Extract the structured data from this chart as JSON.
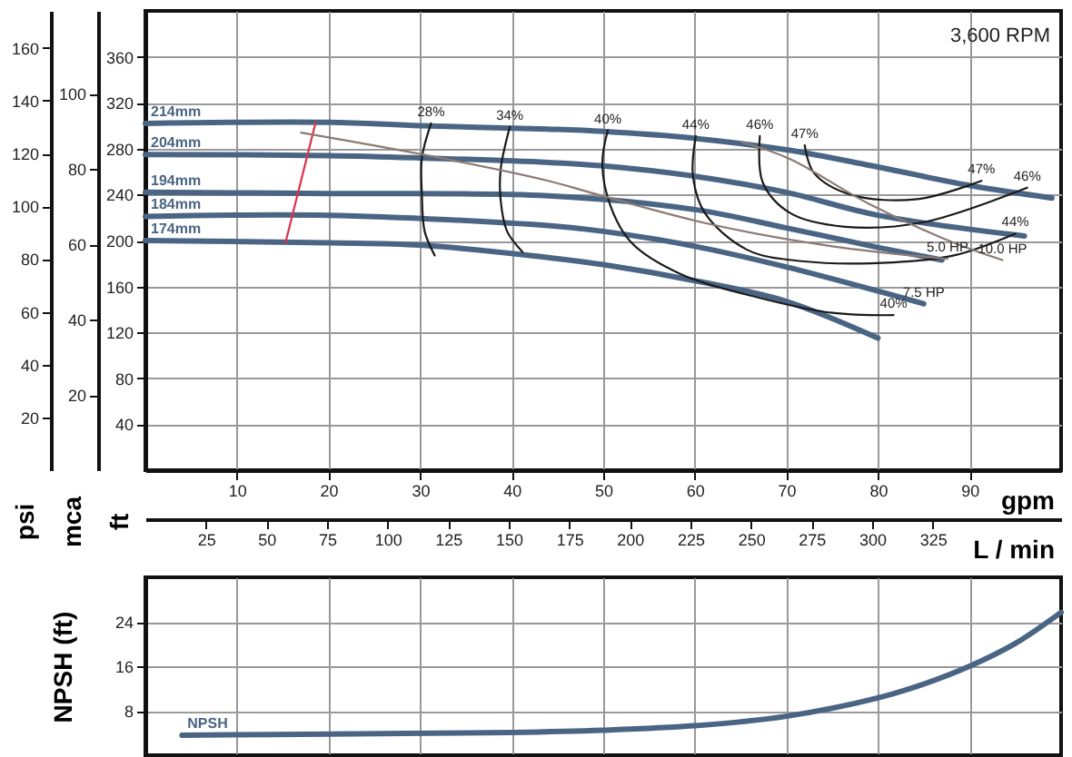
{
  "chart_data": [
    {
      "type": "line",
      "xlabel": "gpm",
      "ylabel": "ft",
      "y2label": "psi",
      "y3label": "mca",
      "x2label": "L / min",
      "xlim": [
        0,
        100
      ],
      "xticks": [
        10,
        20,
        30,
        40,
        50,
        60,
        70,
        80,
        90
      ],
      "ylim": [
        0,
        400
      ],
      "yticks": [
        40,
        80,
        120,
        160,
        200,
        240,
        280,
        320,
        360
      ],
      "y2lim": [
        0,
        174
      ],
      "y2ticks": [
        20,
        40,
        60,
        80,
        100,
        120,
        140,
        160
      ],
      "y3lim": [
        0,
        122
      ],
      "y3ticks": [
        20,
        40,
        60,
        80,
        100
      ],
      "x2lim": [
        0,
        378
      ],
      "x2ticks": [
        25,
        50,
        75,
        100,
        125,
        150,
        175,
        200,
        225,
        250,
        275,
        300,
        325
      ],
      "grid": true,
      "series": [
        {
          "name": "214mm",
          "color": "#4a6584",
          "x": [
            0,
            20,
            30,
            44,
            50,
            60,
            70,
            80,
            90,
            99
          ],
          "values": [
            302,
            303,
            300,
            297,
            295,
            289,
            279,
            264,
            248,
            237
          ]
        },
        {
          "name": "204mm",
          "color": "#4a6584",
          "x": [
            0,
            20,
            30,
            44,
            50,
            60,
            70,
            80,
            96
          ],
          "values": [
            275,
            274,
            272,
            268,
            265,
            256,
            242,
            222,
            204
          ]
        },
        {
          "name": "194mm",
          "color": "#4a6584",
          "x": [
            0,
            20,
            44,
            60,
            70,
            80,
            87
          ],
          "values": [
            242,
            241,
            239,
            227,
            211,
            194,
            183
          ]
        },
        {
          "name": "184mm",
          "color": "#4a6584",
          "x": [
            0,
            20,
            44,
            50,
            60,
            70,
            80,
            85
          ],
          "values": [
            221,
            222,
            213,
            208,
            195,
            177,
            156,
            145
          ]
        },
        {
          "name": "174mm",
          "color": "#4a6584",
          "x": [
            0,
            20,
            30,
            42,
            50,
            60,
            70,
            80
          ],
          "values": [
            200,
            198,
            196,
            187,
            179,
            165,
            147,
            115
          ]
        },
        {
          "color": "#e0304a",
          "x": [
            18.6,
            15.3
          ],
          "values": [
            303,
            198
          ]
        },
        {
          "color": "#1a1a1a",
          "x": [
            31.2,
            30.2,
            30.2,
            30.5,
            31.6
          ],
          "values": [
            302,
            272,
            240,
            208,
            187
          ]
        },
        {
          "color": "#1a1a1a",
          "x": [
            39.8,
            38.8,
            38.8,
            39.5,
            41.2
          ],
          "values": [
            299,
            262,
            235,
            208,
            190
          ]
        },
        {
          "color": "#1a1a1a",
          "x": [
            50.5,
            49.9,
            50.8,
            53.1,
            58.4,
            67.1,
            75,
            81.7
          ],
          "values": [
            296,
            267,
            230,
            198,
            171,
            150,
            137,
            135
          ]
        },
        {
          "color": "#1a1a1a",
          "x": [
            60.1,
            59.8,
            61.1,
            65.7,
            71.7,
            81.7,
            88.3,
            95
          ],
          "values": [
            291,
            256,
            224,
            192,
            182,
            181,
            187,
            206
          ]
        },
        {
          "color": "#1a1a1a",
          "x": [
            67.1,
            67.4,
            70.4,
            76.4,
            85,
            96.3
          ],
          "values": [
            291,
            251,
            224,
            212,
            216,
            246
          ]
        },
        {
          "color": "#1a1a1a",
          "x": [
            72,
            73,
            77,
            84.3,
            91.3
          ],
          "values": [
            283,
            259,
            240,
            236,
            252
          ]
        },
        {
          "color": "#8c7b74",
          "x": [
            17,
            30.9,
            44,
            48.5,
            61.8,
            75,
            87.6
          ],
          "values": [
            294,
            274,
            252,
            242,
            214,
            195,
            184
          ]
        },
        {
          "color": "#8c7b74",
          "x": [
            65.1,
            70.4,
            79,
            88.3,
            93.6
          ],
          "values": [
            286,
            271,
            232,
            198,
            183
          ]
        }
      ],
      "annotations": [
        {
          "text": "28%",
          "x": 31.2,
          "y": 302
        },
        {
          "text": "34%",
          "x": 39.8,
          "y": 299
        },
        {
          "text": "40%",
          "x": 50.5,
          "y": 296
        },
        {
          "text": "40%",
          "x": 81.7,
          "y": 135
        },
        {
          "text": "44%",
          "x": 60.1,
          "y": 291
        },
        {
          "text": "44%",
          "x": 95,
          "y": 206
        },
        {
          "text": "46%",
          "x": 67.1,
          "y": 291
        },
        {
          "text": "46%",
          "x": 96.3,
          "y": 246
        },
        {
          "text": "47%",
          "x": 72,
          "y": 283
        },
        {
          "text": "47%",
          "x": 91.3,
          "y": 252
        },
        {
          "text": "5.0 HP",
          "x": 87.6,
          "y": 184
        },
        {
          "text": "10.0 HP",
          "x": 93.6,
          "y": 183
        },
        {
          "text": "7.5 HP",
          "x": 85,
          "y": 145
        },
        "3,600 RPM"
      ]
    },
    {
      "type": "line",
      "ylabel": "NPSH (ft)",
      "xlim": [
        0,
        100
      ],
      "xticks": [
        10,
        20,
        30,
        40,
        50,
        60,
        70,
        80,
        90
      ],
      "ylim": [
        0,
        32
      ],
      "yticks": [
        8,
        16,
        24
      ],
      "grid": true,
      "tick_labels": "y",
      "series": [
        {
          "name": "NPSH",
          "color": "#4a6584",
          "x": [
            4,
            20,
            40,
            50,
            60,
            70,
            80,
            85,
            90,
            95,
            100
          ],
          "values": [
            3.6,
            3.8,
            4.1,
            4.5,
            5.3,
            7.0,
            10.3,
            12.8,
            16,
            20.1,
            25.7
          ]
        }
      ]
    }
  ]
}
